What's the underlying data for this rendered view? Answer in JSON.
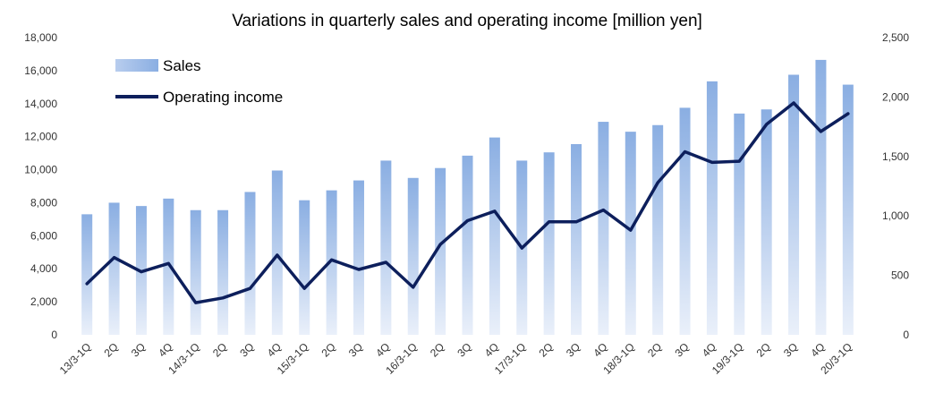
{
  "chart_data": {
    "type": "bar",
    "title": "Variations in quarterly sales and operating income [million yen]",
    "categories": [
      "13/3-1Q",
      "2Q",
      "3Q",
      "4Q",
      "14/3-1Q",
      "2Q",
      "3Q",
      "4Q",
      "15/3-1Q",
      "2Q",
      "3Q",
      "4Q",
      "16/3-1Q",
      "2Q",
      "3Q",
      "4Q",
      "17/3-1Q",
      "2Q",
      "3Q",
      "4Q",
      "18/3-1Q",
      "2Q",
      "3Q",
      "4Q",
      "19/3-1Q",
      "2Q",
      "3Q",
      "4Q",
      "20/3-1Q"
    ],
    "series": [
      {
        "name": "Sales",
        "type": "bar",
        "axis": "left",
        "color": "#8fb0e0",
        "values": [
          7300,
          8000,
          7800,
          8250,
          7550,
          7550,
          8650,
          9950,
          8150,
          8750,
          9350,
          10550,
          9500,
          10100,
          10850,
          11950,
          10550,
          11050,
          11550,
          12900,
          12300,
          12700,
          13750,
          15350,
          13400,
          13650,
          15750,
          16650,
          15150
        ]
      },
      {
        "name": "Operating income",
        "type": "line",
        "axis": "right",
        "color": "#0d1f5c",
        "values": [
          430,
          650,
          530,
          600,
          270,
          310,
          390,
          670,
          390,
          630,
          550,
          610,
          400,
          760,
          960,
          1040,
          730,
          950,
          950,
          1050,
          880,
          1280,
          1540,
          1450,
          1460,
          1770,
          1950,
          1710,
          1860
        ]
      }
    ],
    "y_left": {
      "min": 0,
      "max": 18000,
      "ticks": [
        "0",
        "2,000",
        "4,000",
        "6,000",
        "8,000",
        "10,000",
        "12,000",
        "14,000",
        "16,000",
        "18,000"
      ]
    },
    "y_right": {
      "min": 0,
      "max": 2500,
      "ticks": [
        "0",
        "500",
        "1,000",
        "1,500",
        "2,000",
        "2,500"
      ]
    },
    "legend": {
      "position": "top-left",
      "entries": [
        "Sales",
        "Operating income"
      ]
    },
    "grid": false
  }
}
